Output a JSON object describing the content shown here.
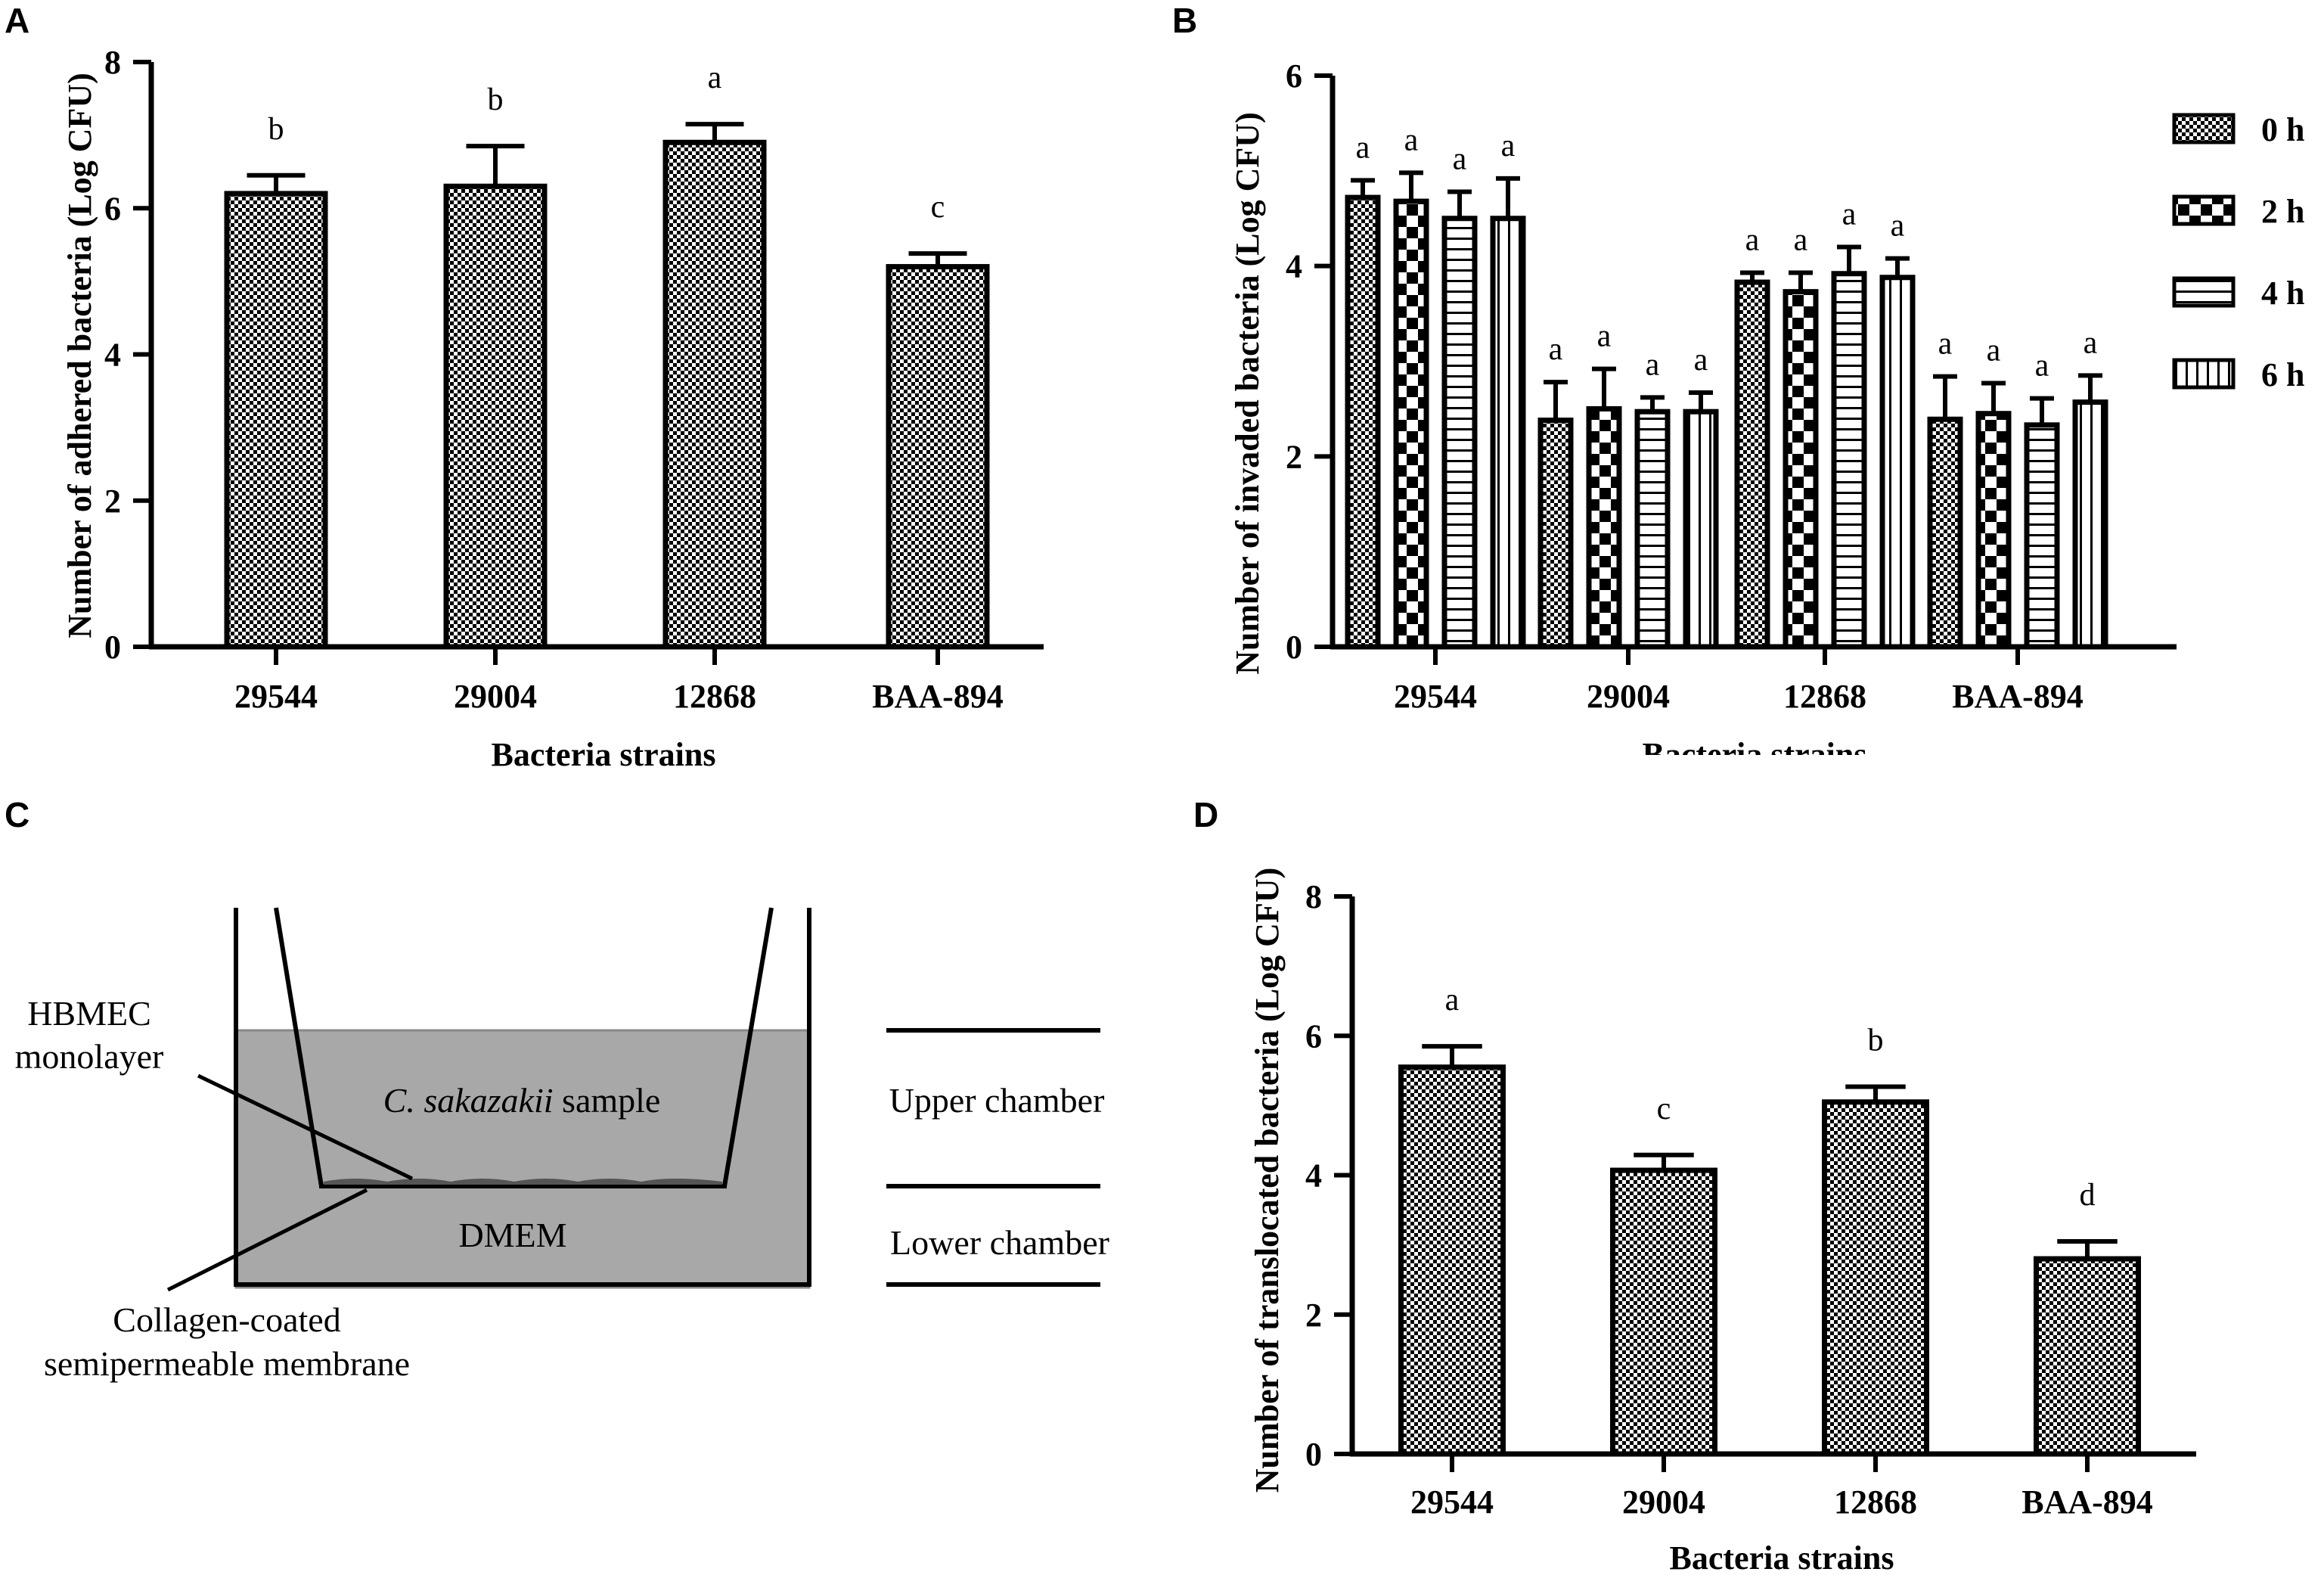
{
  "panels": {
    "A": "A",
    "B": "B",
    "C": "C",
    "D": "D"
  },
  "chart_data": [
    {
      "id": "A",
      "type": "bar",
      "ylabel": "Number of adhered bacteria (Log CFU)",
      "xlabel": "Bacteria strains",
      "categories": [
        "29544",
        "29004",
        "12868",
        "BAA-894"
      ],
      "values": [
        6.2,
        6.3,
        6.9,
        5.2
      ],
      "errors": [
        0.25,
        0.55,
        0.25,
        0.18
      ],
      "significance": [
        "b",
        "b",
        "a",
        "c"
      ],
      "ylim": [
        0,
        8
      ],
      "yticks": [
        "0",
        "2",
        "4",
        "6",
        "8"
      ]
    },
    {
      "id": "B",
      "type": "bar",
      "ylabel": "Number of invaded bacteria (Log CFU)",
      "xlabel": "Bacteria strains",
      "categories": [
        "29544",
        "29004",
        "12868",
        "BAA-894"
      ],
      "series": [
        {
          "name": "0 h",
          "pattern": "fine-checker",
          "values": [
            4.72,
            2.38,
            3.83,
            2.39
          ],
          "errors": [
            0.18,
            0.4,
            0.1,
            0.45
          ],
          "significance": [
            "a",
            "a",
            "a",
            "a"
          ]
        },
        {
          "name": "2 h",
          "pattern": "coarse-checker",
          "values": [
            4.68,
            2.5,
            3.73,
            2.45
          ],
          "errors": [
            0.3,
            0.42,
            0.2,
            0.32
          ],
          "significance": [
            "a",
            "a",
            "a",
            "a"
          ]
        },
        {
          "name": "4 h",
          "pattern": "horizontal-lines",
          "values": [
            4.5,
            2.47,
            3.92,
            2.33
          ],
          "errors": [
            0.28,
            0.15,
            0.28,
            0.28
          ],
          "significance": [
            "a",
            "a",
            "a",
            "a"
          ]
        },
        {
          "name": "6 h",
          "pattern": "vertical-lines",
          "values": [
            4.5,
            2.47,
            3.88,
            2.57
          ],
          "errors": [
            0.42,
            0.2,
            0.2,
            0.28
          ],
          "significance": [
            "a",
            "a",
            "a",
            "a"
          ]
        }
      ],
      "legend_position": "top-right",
      "ylim": [
        0,
        6
      ],
      "yticks": [
        "0",
        "2",
        "4",
        "6"
      ]
    },
    {
      "id": "D",
      "type": "bar",
      "ylabel": "Number of translocated bacteria (Log CFU)",
      "xlabel": "Bacteria strains",
      "categories": [
        "29544",
        "29004",
        "12868",
        "BAA-894"
      ],
      "values": [
        5.55,
        4.07,
        5.05,
        2.8
      ],
      "errors": [
        0.3,
        0.22,
        0.22,
        0.25
      ],
      "significance": [
        "a",
        "c",
        "b",
        "d"
      ],
      "ylim": [
        0,
        8
      ],
      "yticks": [
        "0",
        "2",
        "4",
        "6",
        "8"
      ]
    }
  ],
  "diagram": {
    "hbmec_line1": "HBMEC",
    "hbmec_line2": "monolayer",
    "sample_italic": "C. sakazakii",
    "sample_rest": " sample",
    "dmem": "DMEM",
    "collagen_line1": "Collagen-coated",
    "collagen_line2": "semipermeable membrane",
    "upper_chamber": "Upper chamber",
    "lower_chamber": "Lower chamber"
  }
}
